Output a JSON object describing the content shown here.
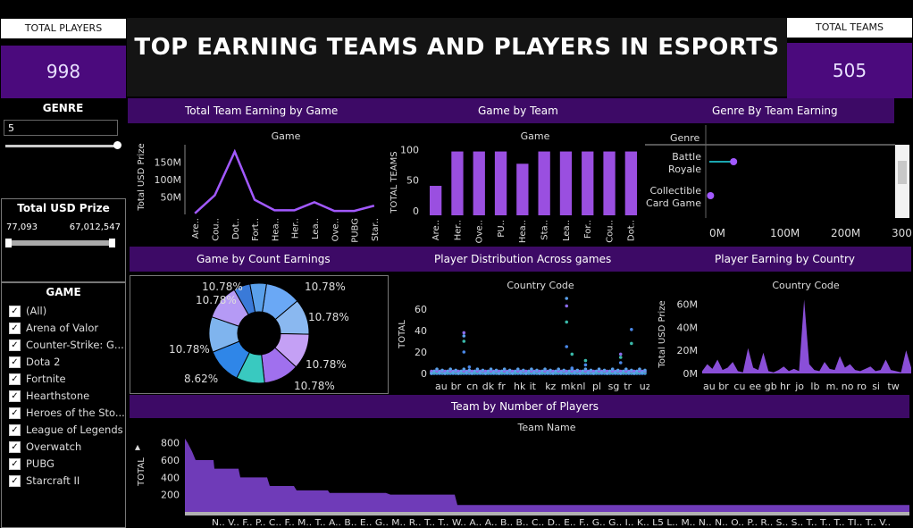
{
  "title": "TOP EARNING TEAMS AND PLAYERS IN ESPORTS",
  "kpi_players": {
    "label": "TOTAL PLAYERS",
    "value": "998"
  },
  "kpi_teams": {
    "label": "TOTAL TEAMS",
    "value": "505"
  },
  "filters": {
    "genre": {
      "label": "GENRE",
      "value": "5"
    },
    "prize": {
      "label": "Total USD Prize",
      "min": "77,093",
      "max": "67,012,547"
    },
    "game": {
      "label": "GAME",
      "items": [
        "(All)",
        "Arena of Valor",
        "Counter-Strike: G...",
        "Dota 2",
        "Fortnite",
        "Hearthstone",
        "Heroes of the Sto...",
        "League of Legends",
        "Overwatch",
        "PUBG",
        "Starcraft II"
      ]
    }
  },
  "bands": {
    "top": [
      "Total Team Earning by Game",
      "Game  by Team",
      "Genre By Team Earning"
    ],
    "mid": [
      "Game by Count  Earnings",
      "Player Distribution Across games",
      "Player Earning by Country"
    ],
    "bottom": "Team by Number of Players"
  },
  "charts": {
    "line_game": {
      "header": "Game",
      "ylabel": "Total USD Prize",
      "yticks": [
        "50M",
        "100M",
        "150M"
      ],
      "categories": [
        "Are..",
        "Cou..",
        "Dot..",
        "Fort..",
        "Hea..",
        "Her..",
        "Lea..",
        "Ove..",
        "PUBG",
        "Star.."
      ],
      "values": [
        3,
        55,
        180,
        42,
        12,
        12,
        35,
        10,
        10,
        25
      ],
      "ymax": 200,
      "color": "#a259ff"
    },
    "bar_teams": {
      "header": "Game",
      "ylabel": "TOTAL TEAMS",
      "yticks": [
        "0",
        "50",
        "100"
      ],
      "categories": [
        "Are..",
        "Her..",
        "Ove..",
        "PU..",
        "Hea..",
        "Sta..",
        "Lea..",
        "For..",
        "Cou..",
        "Dot.."
      ],
      "values": [
        48,
        104,
        104,
        104,
        84,
        104,
        104,
        104,
        104,
        104
      ],
      "ymax": 115,
      "color": "#9a4fe0"
    },
    "genre": {
      "header": "Genre",
      "items": [
        {
          "label": [
            "Battle",
            "Royale"
          ],
          "value": 40
        },
        {
          "label": [
            "Collectible",
            "Card Game"
          ],
          "value": 2
        }
      ],
      "xticks": [
        "0M",
        "100M",
        "200M",
        "300M"
      ],
      "xmax": 300
    },
    "donut": {
      "slices": [
        10.78,
        10.78,
        10.78,
        10.78,
        8.62,
        10.78,
        10.78,
        10.78,
        5,
        5
      ],
      "labels": [
        "10.78%",
        "10.78%",
        "10.78%",
        "10.78%",
        "8.62%",
        "10.78%",
        "10.78%",
        "10.78%"
      ],
      "colors": [
        "#6aa8f5",
        "#8ab8f0",
        "#c4a0f5",
        "#a070ee",
        "#39c9c0",
        "#2f86e8",
        "#7fb4ee",
        "#b59af5",
        "#3a7ad8",
        "#5aa0ea"
      ]
    },
    "scatter": {
      "header": "Country Code",
      "ylabel": "TOTAL",
      "yticks": [
        "0",
        "20",
        "40",
        "60"
      ],
      "ymax": 70,
      "xticks": [
        "au",
        "br",
        "cn",
        "dk",
        "fr",
        "hk",
        "it",
        "kz",
        "mk",
        "nl",
        "pl",
        "sg",
        "tr",
        "uz"
      ]
    },
    "country_area": {
      "header": "Country Code",
      "ylabel": "Total USD Prize",
      "yticks": [
        "0M",
        "20M",
        "40M",
        "60M"
      ],
      "ymax": 65,
      "xticks": [
        "au",
        "br",
        "cu",
        "ee",
        "gb",
        "hr",
        "jo",
        "lb",
        "m.",
        "no",
        "ro",
        "si",
        "tw"
      ],
      "color": "#8a4fd8"
    },
    "team_players": {
      "header": "Team Name",
      "ylabel": "TOTAL",
      "yticks": [
        "200",
        "400",
        "600",
        "800"
      ],
      "ymax": 900,
      "xlabels": "N.. V.. F.. P.. C.. F.. M.. T.. A.. B.. E.. G.. M.. R.. T.. T.. W.. A.. A.. B.. B.. C.. D.. E.. F.. G.. G.. I.. K.. L5 L.. M.. N.. N.. O.. P.. R.. S.. S.. T.. T.. T.. TI.. T.. V..",
      "color": "#6f3bb8"
    }
  }
}
